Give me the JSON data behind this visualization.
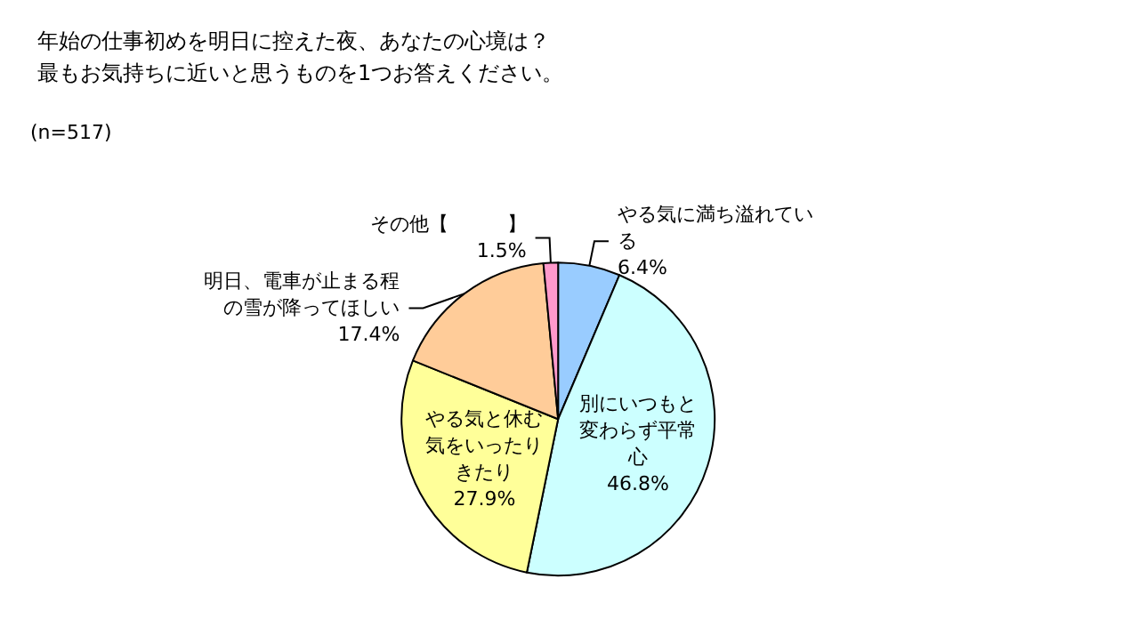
{
  "chart_data": {
    "type": "pie",
    "title": "年始の仕事初めを明日に控えた夜、あなたの心境は？",
    "subtitle": "最もお気持ちに近いと思うものを1つお答えください。",
    "annotations": [
      "(n=517)"
    ],
    "categories": [
      "やる気に満ち溢れている",
      "別にいつもと変わらず平常心",
      "やる気と休む気をいったりきたり",
      "明日、電車が止まる程の雪が降ってほしい",
      "その他【　　　】"
    ],
    "values": [
      6.4,
      46.8,
      27.9,
      17.4,
      1.5
    ],
    "colors": [
      "#99ccff",
      "#ccffff",
      "#ffff99",
      "#ffcc99",
      "#ff99cc"
    ],
    "value_labels": [
      "6.4%",
      "46.8%",
      "27.9%",
      "17.4%",
      "1.5%"
    ],
    "legend": false
  }
}
